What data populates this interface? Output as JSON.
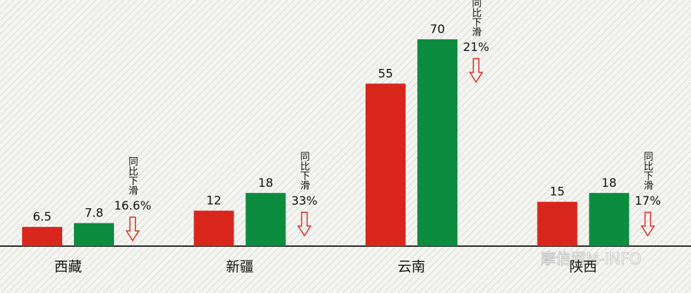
{
  "chart_data": {
    "type": "bar",
    "categories": [
      "西藏",
      "新疆",
      "云南",
      "陕西"
    ],
    "series": [
      {
        "color": "#d9261c",
        "values": [
          6.5,
          12,
          55,
          15
        ]
      },
      {
        "color": "#0c8c3f",
        "values": [
          7.8,
          18,
          70,
          18
        ]
      }
    ],
    "ylim": [
      0,
      70
    ],
    "annotations": [
      {
        "text": "同比下滑",
        "change": "16.6%"
      },
      {
        "text": "同比下滑",
        "change": "33%"
      },
      {
        "text": "同比下滑",
        "change": "21%"
      },
      {
        "text": "同比下滑",
        "change": "17%"
      }
    ],
    "watermark": "摩信网M-INFO"
  }
}
